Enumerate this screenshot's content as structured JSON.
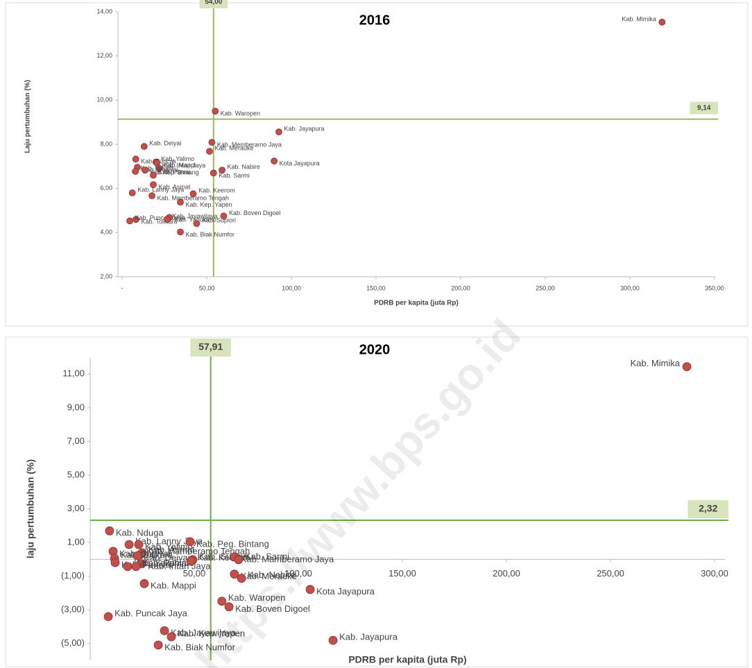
{
  "chart_data": [
    {
      "type": "scatter",
      "title": "2016",
      "ylabel": "Laju pertumbuhan (%)",
      "xlabel": "PDRB per kapita (juta Rp)",
      "color": "#c0504d",
      "line_color": "#9bbb59",
      "xlim": [
        -2.5,
        350
      ],
      "ylim": [
        2,
        14
      ],
      "xticks": [
        {
          "value": 0,
          "label": "-"
        },
        {
          "value": 50,
          "label": "50,00"
        },
        {
          "value": 100,
          "label": "100,00"
        },
        {
          "value": 150,
          "label": "150,00"
        },
        {
          "value": 200,
          "label": "200,00"
        },
        {
          "value": 250,
          "label": "250,00"
        },
        {
          "value": 300,
          "label": "300,00"
        },
        {
          "value": 350,
          "label": "350,00"
        }
      ],
      "yticks": [
        {
          "value": 2,
          "label": "2,00"
        },
        {
          "value": 4,
          "label": "4,00"
        },
        {
          "value": 6,
          "label": "6,00"
        },
        {
          "value": 8,
          "label": "8,00"
        },
        {
          "value": 10,
          "label": "10,00"
        },
        {
          "value": 12,
          "label": "12,00"
        },
        {
          "value": 14,
          "label": "14,00"
        }
      ],
      "vline": {
        "value": 54,
        "label": "54,00"
      },
      "hline": {
        "value": 9.14,
        "label": "9,14"
      },
      "point_labels": [
        "Kab. Mimika",
        "Kab. Waropen",
        "Kab. Jayapura",
        "Kab. Memberamo Jaya",
        "Kab. Merauke",
        "Kota Jayapura",
        "Kab. Nabire",
        "Kab. Sarmi",
        "Kab. Deiyai",
        "Kab. Puncak",
        "Kab. Yalimo",
        "Kab. Intan Jaya",
        "Kab. Mappi",
        "Kab. Dogiyai",
        "Kab. Nduga",
        "Kab.Kep. Bintang",
        "Kab. Paniai",
        "Kab. Asmat",
        "Kab. Keerom",
        "Kab. Kep. Yapen",
        "Kab. Lanny Jaya",
        "Kab. Memberamo Tengah",
        "Kab. Boven Digoel",
        "Kab. Tolikara",
        "Kab. Puncak Jaya",
        "Kab. Yahukimo",
        "Kab. Supiori",
        "Kab. Biak Numfor",
        "Kab. Jayawijaya"
      ],
      "x": [
        319,
        55,
        92.6,
        53,
        51.6,
        89.8,
        59,
        54,
        13,
        8,
        20,
        20.5,
        21.7,
        9,
        7.8,
        13.5,
        18.4,
        18.4,
        42,
        34.4,
        6,
        17.6,
        60,
        8.2,
        4.5,
        27.9,
        44,
        34.4,
        26.6
      ],
      "values": [
        13.53,
        9.5,
        8.56,
        8.09,
        7.68,
        7.24,
        6.83,
        6.7,
        7.9,
        7.33,
        7.2,
        7.15,
        6.92,
        6.96,
        6.77,
        6.83,
        6.6,
        6.17,
        5.76,
        5.38,
        5.8,
        5.67,
        4.75,
        4.6,
        4.53,
        4.69,
        4.41,
        4.03,
        4.6
      ]
    },
    {
      "type": "scatter",
      "title": "2020",
      "ylabel": "laju pertumbuhan (%)",
      "xlabel": "PDRB per kapita (juta Rp)",
      "color": "#c0504d",
      "line_color": "#70ad47",
      "xlim": [
        0,
        305
      ],
      "ylim": [
        -6,
        12
      ],
      "xticks": [
        {
          "value": 50,
          "label": "50,00"
        },
        {
          "value": 100,
          "label": "100,00"
        },
        {
          "value": 150,
          "label": "150,00"
        },
        {
          "value": 200,
          "label": "200,00"
        },
        {
          "value": 250,
          "label": "250,00"
        },
        {
          "value": 300,
          "label": "300,00"
        }
      ],
      "yticks": [
        {
          "value": -5,
          "label": "(5,00)"
        },
        {
          "value": -3,
          "label": "(3,00)"
        },
        {
          "value": -1,
          "label": "(1,00)"
        },
        {
          "value": 1,
          "label": "1,00"
        },
        {
          "value": 3,
          "label": "3,00"
        },
        {
          "value": 5,
          "label": "5,00"
        },
        {
          "value": 7,
          "label": "7,00"
        },
        {
          "value": 9,
          "label": "9,00"
        },
        {
          "value": 11,
          "label": "11,00"
        }
      ],
      "vline": {
        "value": 57.91,
        "label": "57,91"
      },
      "hline": {
        "value": 2.32,
        "label": "2,32"
      },
      "point_labels": [
        "Kab. Mimika",
        "Kab. Nduga",
        "Kab. Lanny Jaya",
        "Kab. Yalimo",
        "Kab. Mamberamo Tengah",
        "Kab. Peg. Bintang",
        "Kab. Supiori",
        "Kab. Intan Jaya",
        "Kab. Asmat",
        "Kab. Dogiyai",
        "Kab. Tolikara",
        "Kab. Puncak",
        "Kab. Yakuhimo",
        "Kab. Deiyai",
        "Kab. Paniai",
        "Kab. Mappi",
        "Kab. Keerom",
        "Kab. Mamberamo Jaya",
        "Kab. Sarmi",
        "Kab. Merauke",
        "Kab. Nabire",
        "Kota Jayapura",
        "Kab. Waropen",
        "Kab. Boven Digoel",
        "Kab. Puncak Jaya",
        "Kab. Jayawijaya",
        "Kab. Kep. Yapen",
        "Kab. Biak Numfor",
        "Kab. Jayapura"
      ],
      "x": [
        286.7,
        9.3,
        18.7,
        23.3,
        24,
        48,
        49.3,
        24.7,
        25,
        11,
        11.7,
        12,
        18,
        22.7,
        22,
        26,
        48.5,
        69.3,
        71.3,
        69.3,
        72.7,
        105.7,
        63.3,
        66.7,
        8.7,
        35.7,
        39,
        32.7,
        116.7
      ],
      "values": [
        11.44,
        1.69,
        0.88,
        0.88,
        0.27,
        1.05,
        -0.02,
        -0.27,
        0.39,
        0.47,
        0.06,
        -0.19,
        -0.43,
        0.21,
        -0.43,
        -1.44,
        -0.1,
        0.14,
        -0.02,
        -0.88,
        -1.13,
        -1.79,
        -2.49,
        -2.82,
        -3.4,
        -4.24,
        -4.6,
        -5.09,
        -4.81
      ]
    }
  ],
  "watermark": "https://www.bps.go.id"
}
